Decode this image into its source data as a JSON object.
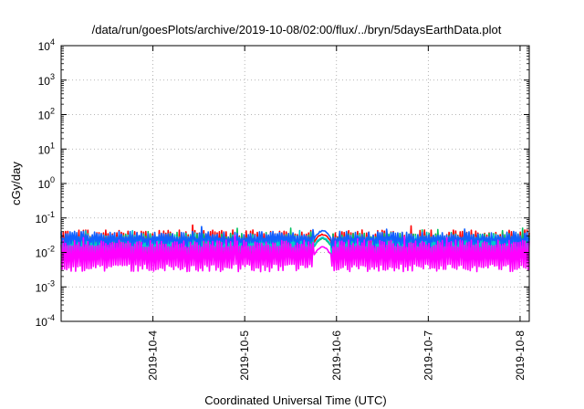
{
  "chart_data": {
    "type": "line",
    "title": "/data/run/goesPlots/archive/2019-10-08/02:00/flux/../bryn/5daysEarthData.plot",
    "xlabel": "Coordinated Universal Time (UTC)",
    "ylabel": "cGy/day",
    "y_scale": "log",
    "ylim_exponents": [
      -4,
      4
    ],
    "y_ticks": [
      {
        "base": "10",
        "exp": "4"
      },
      {
        "base": "10",
        "exp": "3"
      },
      {
        "base": "10",
        "exp": "2"
      },
      {
        "base": "10",
        "exp": "1"
      },
      {
        "base": "10",
        "exp": "0"
      },
      {
        "base": "10",
        "exp": "-1"
      },
      {
        "base": "10",
        "exp": "-2"
      },
      {
        "base": "10",
        "exp": "-3"
      },
      {
        "base": "10",
        "exp": "-4"
      }
    ],
    "xlim_days": [
      3.0,
      8.1
    ],
    "x_ticks": [
      {
        "label": "2019-10-4",
        "day": 4
      },
      {
        "label": "2019-10-5",
        "day": 5
      },
      {
        "label": "2019-10-6",
        "day": 6
      },
      {
        "label": "2019-10-7",
        "day": 7
      },
      {
        "label": "2019-10-8",
        "day": 8
      }
    ],
    "grid": true,
    "gap_interval_days": [
      5.75,
      5.95
    ],
    "series": [
      {
        "color": "#ff0000",
        "upper_log": -1.45,
        "lower_log": -2.0
      },
      {
        "color": "#00c060",
        "upper_log": -1.55,
        "lower_log": -2.15
      },
      {
        "color": "#00c8d0",
        "upper_log": -1.6,
        "lower_log": -2.05
      },
      {
        "color": "#1060ff",
        "upper_log": -1.5,
        "lower_log": -1.75
      },
      {
        "color": "#ff00ff",
        "upper_log": -1.75,
        "lower_log": -2.45
      }
    ]
  }
}
